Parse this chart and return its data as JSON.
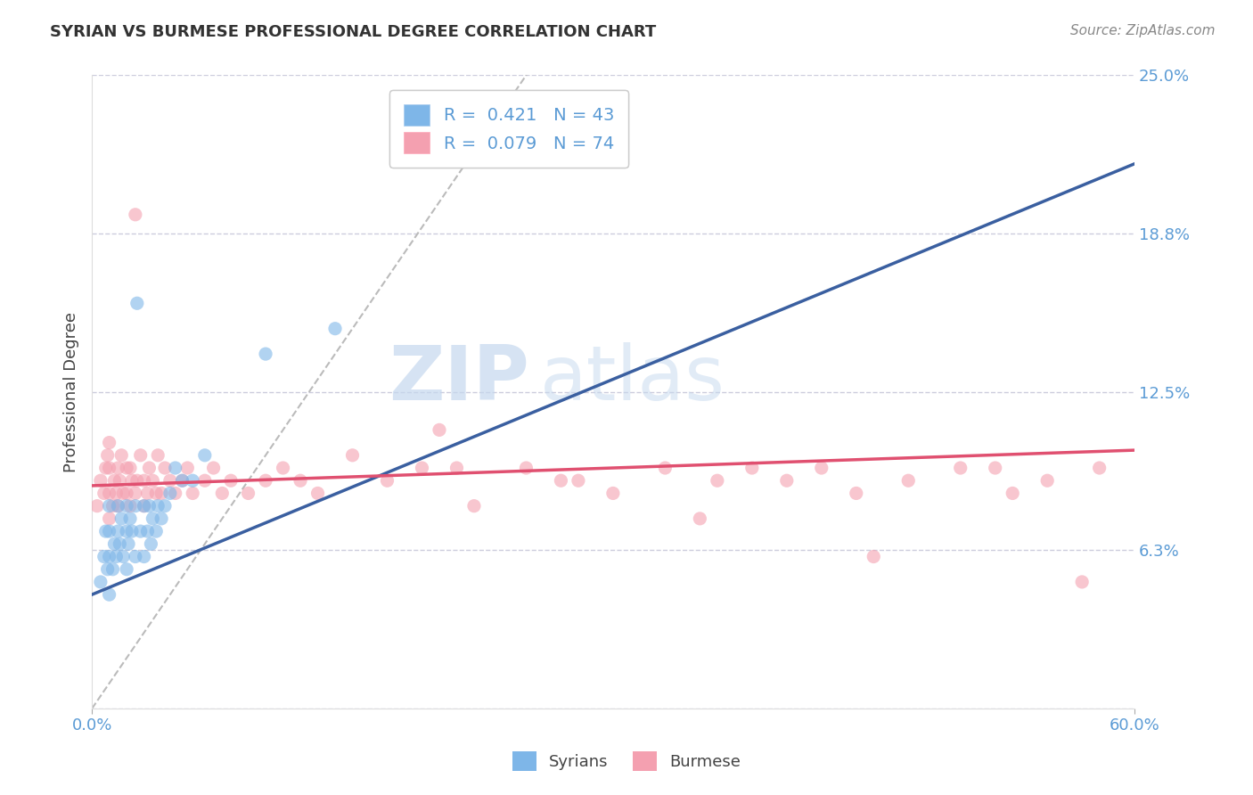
{
  "title": "SYRIAN VS BURMESE PROFESSIONAL DEGREE CORRELATION CHART",
  "source_text": "Source: ZipAtlas.com",
  "ylabel": "Professional Degree",
  "xlim": [
    0.0,
    0.6
  ],
  "ylim": [
    0.0,
    0.25
  ],
  "yticks": [
    0.0,
    0.0625,
    0.125,
    0.1875,
    0.25
  ],
  "ytick_labels": [
    "",
    "6.3%",
    "12.5%",
    "18.8%",
    "25.0%"
  ],
  "xtick_labels": [
    "0.0%",
    "60.0%"
  ],
  "syrian_color": "#7EB6E8",
  "burmese_color": "#F4A0B0",
  "syrian_line_color": "#3A5FA0",
  "burmese_line_color": "#E05070",
  "diagonal_color": "#BBBBBB",
  "R_syrian": 0.421,
  "N_syrian": 43,
  "R_burmese": 0.079,
  "N_burmese": 74,
  "watermark_zip": "ZIP",
  "watermark_atlas": "atlas",
  "background_color": "#FFFFFF",
  "grid_color": "#CCCCDD",
  "tick_color": "#5B9BD5",
  "label_color": "#444444",
  "syrian_line_start_y": 0.045,
  "syrian_line_end_y": 0.215,
  "burmese_line_start_y": 0.088,
  "burmese_line_end_y": 0.102,
  "syrian_x": [
    0.005,
    0.007,
    0.008,
    0.009,
    0.01,
    0.01,
    0.01,
    0.01,
    0.012,
    0.013,
    0.014,
    0.015,
    0.015,
    0.016,
    0.017,
    0.018,
    0.02,
    0.02,
    0.02,
    0.021,
    0.022,
    0.023,
    0.025,
    0.025,
    0.026,
    0.028,
    0.03,
    0.03,
    0.032,
    0.033,
    0.034,
    0.035,
    0.037,
    0.038,
    0.04,
    0.042,
    0.045,
    0.048,
    0.052,
    0.058,
    0.065,
    0.1,
    0.14
  ],
  "syrian_y": [
    0.05,
    0.06,
    0.07,
    0.055,
    0.045,
    0.06,
    0.07,
    0.08,
    0.055,
    0.065,
    0.06,
    0.07,
    0.08,
    0.065,
    0.075,
    0.06,
    0.055,
    0.07,
    0.08,
    0.065,
    0.075,
    0.07,
    0.06,
    0.08,
    0.16,
    0.07,
    0.06,
    0.08,
    0.07,
    0.08,
    0.065,
    0.075,
    0.07,
    0.08,
    0.075,
    0.08,
    0.085,
    0.095,
    0.09,
    0.09,
    0.1,
    0.14,
    0.15
  ],
  "burmese_x": [
    0.003,
    0.005,
    0.007,
    0.008,
    0.009,
    0.01,
    0.01,
    0.01,
    0.01,
    0.012,
    0.013,
    0.014,
    0.015,
    0.015,
    0.016,
    0.017,
    0.018,
    0.02,
    0.02,
    0.022,
    0.022,
    0.023,
    0.025,
    0.025,
    0.026,
    0.028,
    0.03,
    0.03,
    0.032,
    0.033,
    0.035,
    0.037,
    0.038,
    0.04,
    0.042,
    0.045,
    0.048,
    0.052,
    0.055,
    0.058,
    0.065,
    0.07,
    0.075,
    0.08,
    0.09,
    0.1,
    0.11,
    0.12,
    0.13,
    0.15,
    0.17,
    0.19,
    0.21,
    0.25,
    0.27,
    0.3,
    0.33,
    0.36,
    0.38,
    0.4,
    0.42,
    0.44,
    0.47,
    0.5,
    0.53,
    0.55,
    0.58,
    0.2,
    0.22,
    0.28,
    0.35,
    0.45,
    0.52,
    0.57
  ],
  "burmese_y": [
    0.08,
    0.09,
    0.085,
    0.095,
    0.1,
    0.075,
    0.085,
    0.095,
    0.105,
    0.08,
    0.09,
    0.085,
    0.08,
    0.095,
    0.09,
    0.1,
    0.085,
    0.085,
    0.095,
    0.08,
    0.095,
    0.09,
    0.085,
    0.195,
    0.09,
    0.1,
    0.08,
    0.09,
    0.085,
    0.095,
    0.09,
    0.085,
    0.1,
    0.085,
    0.095,
    0.09,
    0.085,
    0.09,
    0.095,
    0.085,
    0.09,
    0.095,
    0.085,
    0.09,
    0.085,
    0.09,
    0.095,
    0.09,
    0.085,
    0.1,
    0.09,
    0.095,
    0.095,
    0.095,
    0.09,
    0.085,
    0.095,
    0.09,
    0.095,
    0.09,
    0.095,
    0.085,
    0.09,
    0.095,
    0.085,
    0.09,
    0.095,
    0.11,
    0.08,
    0.09,
    0.075,
    0.06,
    0.095,
    0.05
  ]
}
